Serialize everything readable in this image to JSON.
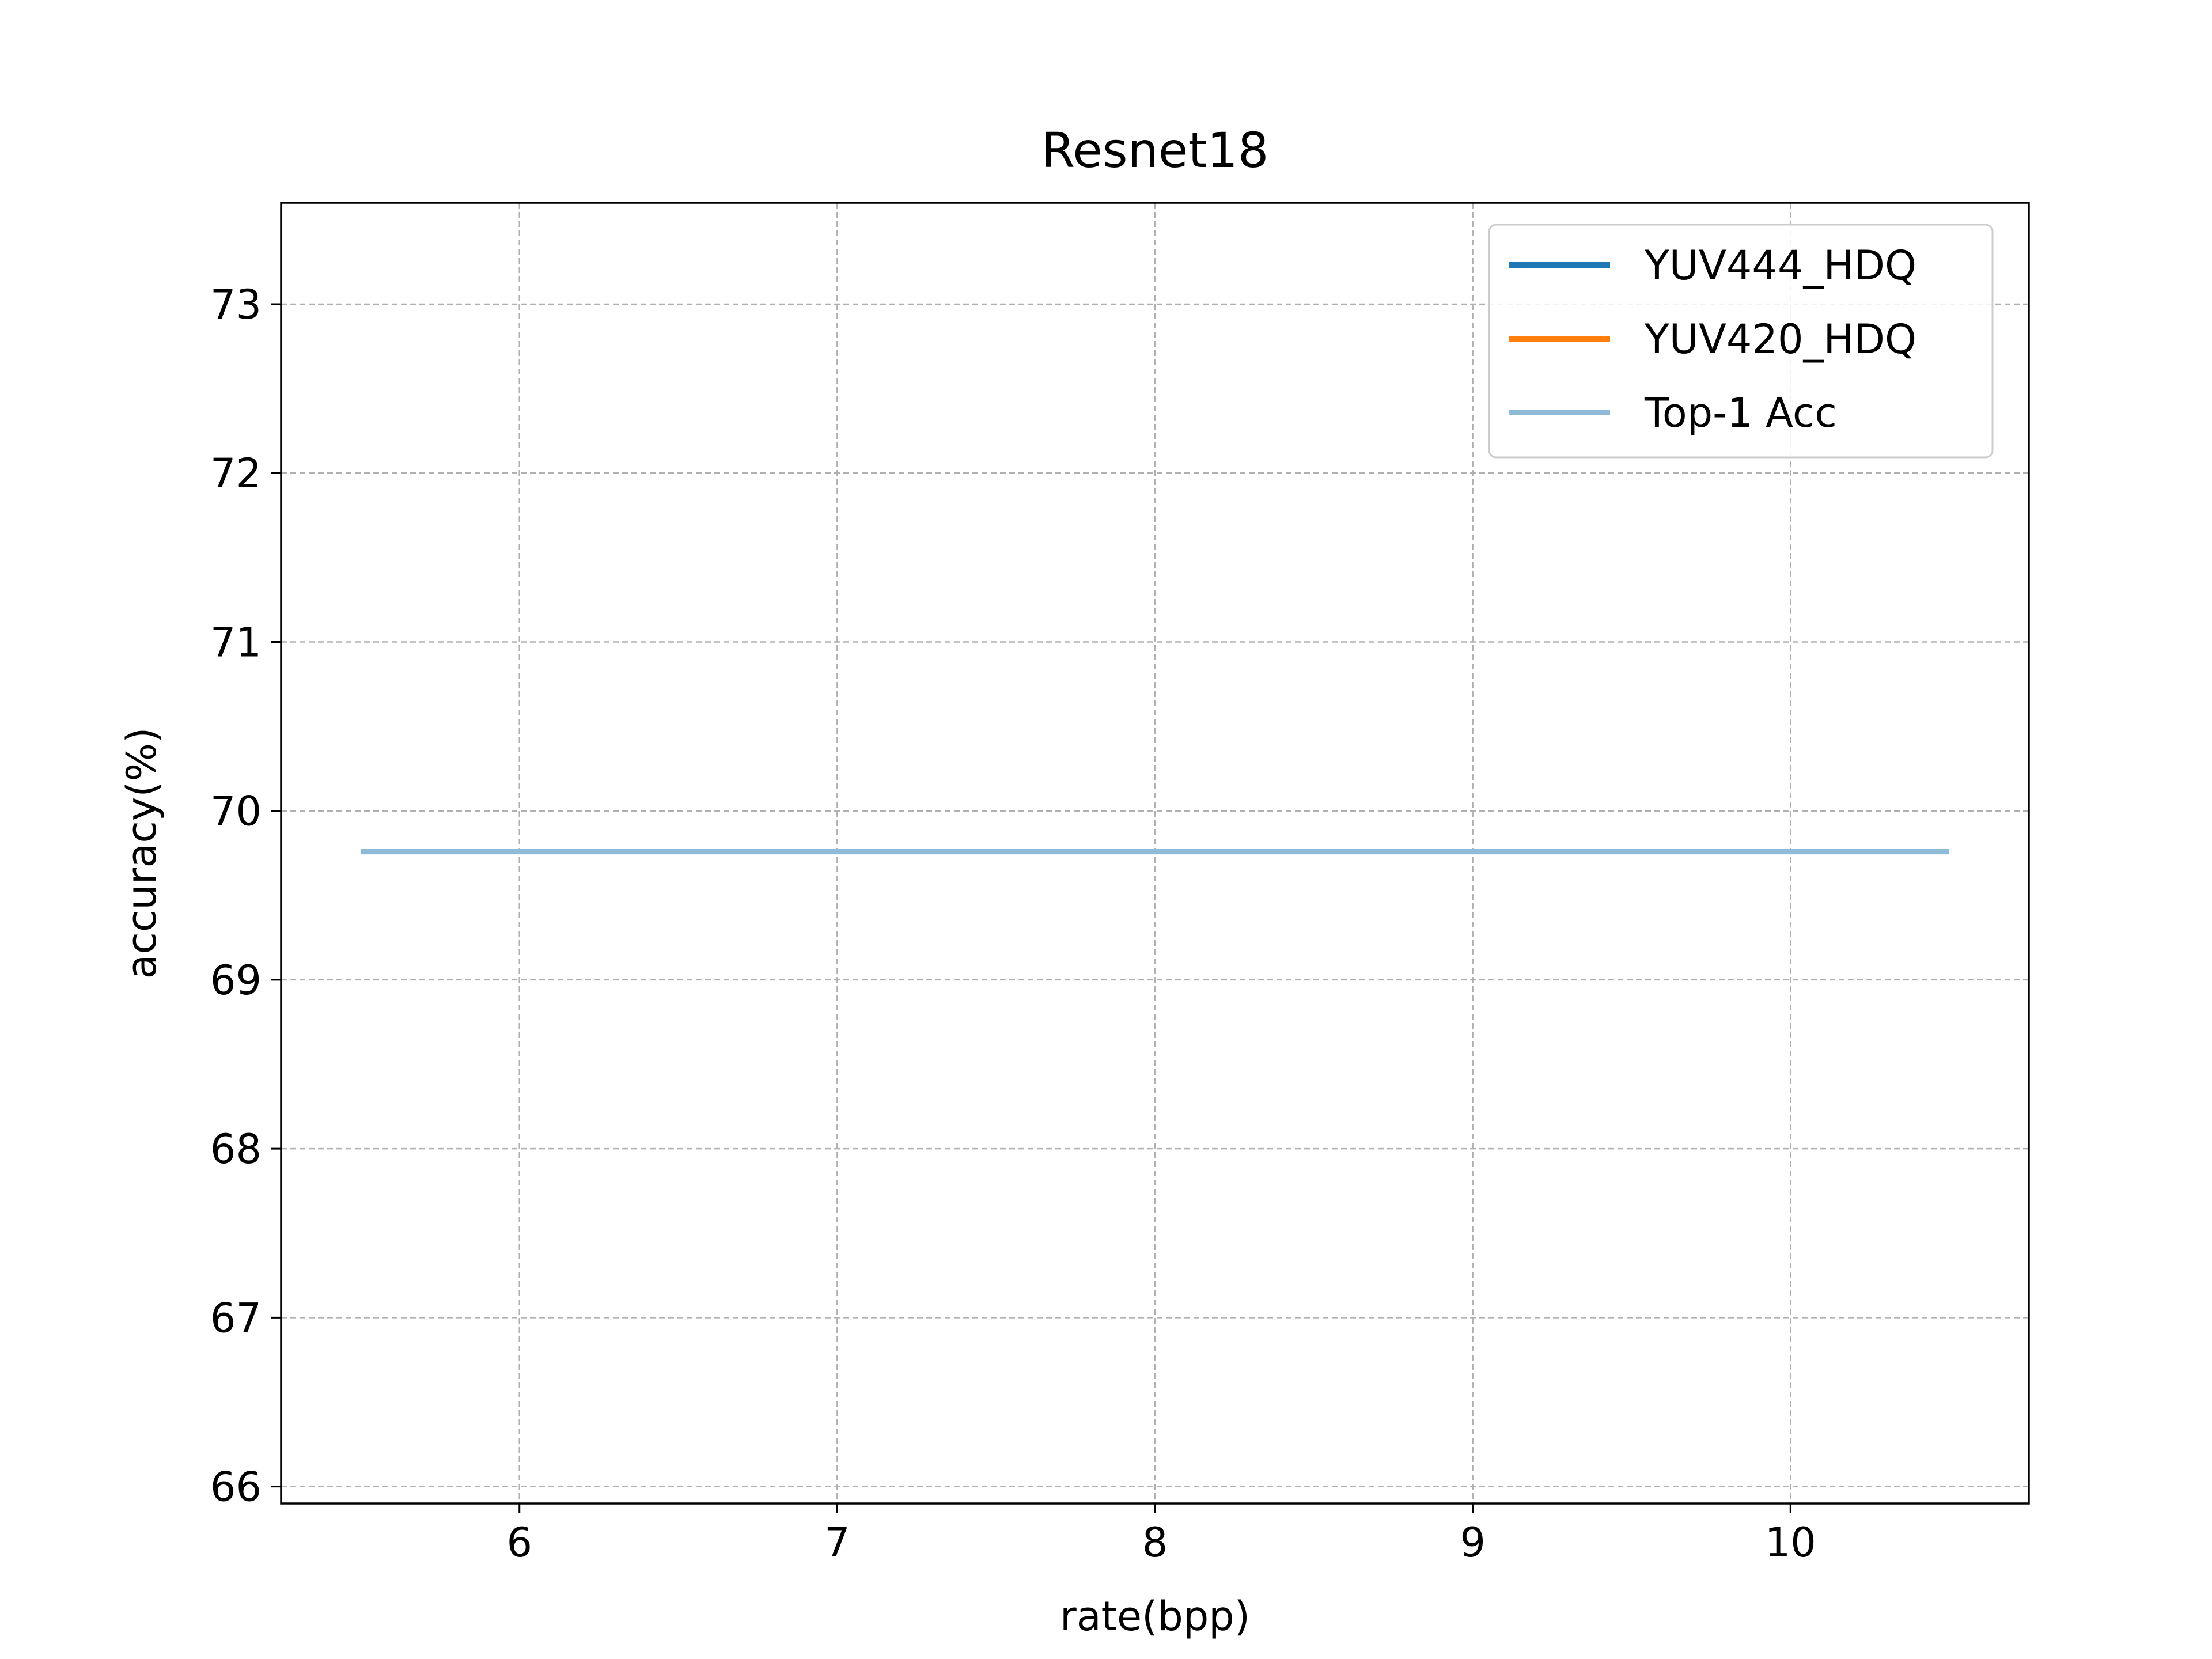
{
  "chart_data": {
    "type": "line",
    "title": "Resnet18",
    "xlabel": "rate(bpp)",
    "ylabel": "accuracy(%)",
    "xlim": [
      5.25,
      10.75
    ],
    "ylim": [
      65.9,
      73.6
    ],
    "xticks": [
      6,
      7,
      8,
      9,
      10
    ],
    "yticks": [
      66,
      67,
      68,
      69,
      70,
      71,
      72,
      73
    ],
    "grid": true,
    "legend_position": "top-right",
    "series": [
      {
        "name": "YUV444_HDQ",
        "color": "#1f77b4",
        "x": [],
        "y": []
      },
      {
        "name": "YUV420_HDQ",
        "color": "#ff7f0e",
        "x": [],
        "y": []
      },
      {
        "name": "Top-1 Acc",
        "color": "#8fbbd9",
        "x": [
          5.5,
          10.5
        ],
        "y": [
          69.76,
          69.76
        ]
      }
    ]
  }
}
